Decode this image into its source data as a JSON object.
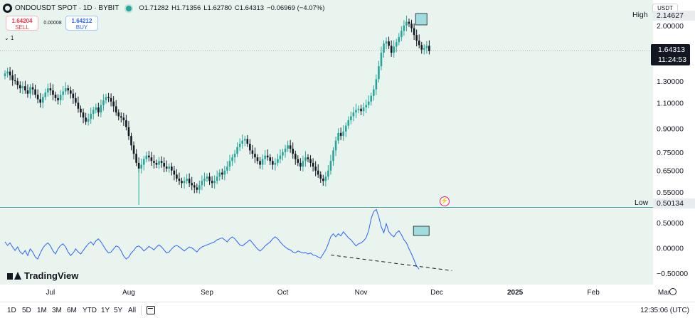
{
  "legend": {
    "symbol": "ONDOUSDT SPOT · 1D · BYBIT",
    "open": "O1.71282",
    "high": "H1.71356",
    "low": "L1.62780",
    "close": "C1.64313",
    "change": "−0.06969 (−4.07%)"
  },
  "trade": {
    "sell_price": "1.64204",
    "sell_label": "SELL",
    "buy_price": "1.64212",
    "buy_label": "BUY",
    "spread": "0.00008"
  },
  "indicator_toggle": "⌄ 1",
  "price_axis": {
    "currency": "USDT",
    "high_label": "High",
    "high_value": "2.14627",
    "low_label": "Low",
    "low_value": "0.50134",
    "last_price": "1.64313",
    "countdown": "11:24:53",
    "ticks": [
      {
        "label": "2.00000",
        "value": 2.0
      },
      {
        "label": "1.30000",
        "value": 1.3
      },
      {
        "label": "1.10000",
        "value": 1.1
      },
      {
        "label": "0.90000",
        "value": 0.9
      },
      {
        "label": "0.75000",
        "value": 0.75
      },
      {
        "label": "0.65000",
        "value": 0.65
      },
      {
        "label": "0.55000",
        "value": 0.55
      }
    ]
  },
  "osc_axis": {
    "ticks": [
      {
        "label": "0.50000",
        "value": 0.5
      },
      {
        "label": "0.00000",
        "value": 0.0
      },
      {
        "label": "−0.50000",
        "value": -0.5
      }
    ]
  },
  "x_axis": {
    "labels": [
      {
        "label": "Jul",
        "day": 18,
        "bold": false
      },
      {
        "label": "Aug",
        "day": 49,
        "bold": false
      },
      {
        "label": "Sep",
        "day": 80,
        "bold": false
      },
      {
        "label": "Oct",
        "day": 110,
        "bold": false
      },
      {
        "label": "Nov",
        "day": 141,
        "bold": false
      },
      {
        "label": "Dec",
        "day": 171,
        "bold": false
      },
      {
        "label": "2025",
        "day": 202,
        "bold": true
      },
      {
        "label": "Feb",
        "day": 233,
        "bold": false
      },
      {
        "label": "Mar",
        "day": 261,
        "bold": false
      }
    ]
  },
  "bottom_bar": {
    "ranges": [
      "1D",
      "5D",
      "1M",
      "3M",
      "6M",
      "YTD",
      "1Y",
      "5Y",
      "All"
    ],
    "clock": "12:35:06 (UTC)"
  },
  "branding": "TradingView",
  "colors": {
    "up": "#26a69a",
    "down": "#131722",
    "oscillator": "#2962ff",
    "pane_bg": "#eaf4ee",
    "highlight_box": "#7fd3d8"
  },
  "chart_data": [
    {
      "type": "candlestick",
      "title": "ONDOUSDT SPOT · 1D · BYBIT",
      "scale": "log",
      "ylim": [
        0.5,
        2.3
      ],
      "x_unit": "day index (Jul label at day 18)",
      "closes": [
        1.38,
        1.4,
        1.36,
        1.31,
        1.3,
        1.26,
        1.23,
        1.25,
        1.21,
        1.18,
        1.24,
        1.22,
        1.17,
        1.13,
        1.1,
        1.15,
        1.19,
        1.23,
        1.21,
        1.17,
        1.14,
        1.12,
        1.17,
        1.2,
        1.23,
        1.21,
        1.18,
        1.14,
        1.1,
        1.05,
        1.02,
        0.98,
        0.95,
        0.97,
        1.01,
        1.04,
        1.06,
        1.02,
        1.08,
        1.12,
        1.15,
        1.14,
        1.11,
        1.07,
        1.02,
        0.99,
        0.98,
        0.96,
        0.91,
        0.85,
        0.79,
        0.74,
        0.69,
        0.66,
        0.68,
        0.71,
        0.73,
        0.72,
        0.7,
        0.69,
        0.68,
        0.7,
        0.69,
        0.67,
        0.66,
        0.67,
        0.65,
        0.63,
        0.61,
        0.6,
        0.59,
        0.6,
        0.61,
        0.59,
        0.58,
        0.57,
        0.56,
        0.58,
        0.6,
        0.61,
        0.62,
        0.6,
        0.59,
        0.6,
        0.62,
        0.64,
        0.63,
        0.65,
        0.67,
        0.7,
        0.72,
        0.74,
        0.78,
        0.8,
        0.82,
        0.83,
        0.8,
        0.76,
        0.74,
        0.72,
        0.7,
        0.68,
        0.71,
        0.73,
        0.72,
        0.7,
        0.68,
        0.69,
        0.71,
        0.73,
        0.75,
        0.77,
        0.79,
        0.77,
        0.74,
        0.71,
        0.69,
        0.67,
        0.7,
        0.72,
        0.71,
        0.69,
        0.67,
        0.65,
        0.63,
        0.61,
        0.6,
        0.62,
        0.65,
        0.7,
        0.76,
        0.82,
        0.87,
        0.85,
        0.88,
        0.92,
        0.96,
        0.99,
        1.02,
        1.04,
        1.05,
        1.03,
        1.06,
        1.08,
        1.11,
        1.16,
        1.22,
        1.32,
        1.46,
        1.62,
        1.74,
        1.77,
        1.71,
        1.62,
        1.7,
        1.76,
        1.83,
        1.92,
        2.0,
        2.06,
        2.03,
        1.96,
        1.86,
        1.78,
        1.72,
        1.66,
        1.68,
        1.71,
        1.64
      ],
      "osc_values": [
        0.12,
        0.05,
        0.1,
        0.02,
        -0.05,
        0.02,
        -0.08,
        -0.12,
        -0.05,
        -0.15,
        -0.02,
        -0.08,
        -0.18,
        -0.22,
        -0.1,
        0.0,
        0.06,
        0.1,
        0.04,
        -0.06,
        -0.12,
        -0.02,
        0.05,
        0.08,
        0.02,
        -0.08,
        -0.15,
        -0.1,
        -0.02,
        -0.08,
        -0.12,
        -0.05,
        0.02,
        0.08,
        0.12,
        0.06,
        0.14,
        0.18,
        0.12,
        0.04,
        -0.04,
        -0.1,
        -0.08,
        -0.02,
        0.04,
        0.02,
        -0.06,
        -0.16,
        -0.22,
        -0.18,
        -0.1,
        -0.05,
        0.02,
        0.04,
        0.0,
        -0.06,
        -0.02,
        0.03,
        0.0,
        -0.04,
        0.02,
        0.06,
        0.02,
        -0.04,
        -0.1,
        -0.08,
        -0.02,
        0.03,
        0.05,
        0.02,
        -0.02,
        -0.06,
        -0.02,
        0.02,
        0.0,
        -0.04,
        -0.08,
        -0.02,
        0.02,
        0.04,
        0.06,
        0.08,
        0.1,
        0.12,
        0.16,
        0.18,
        0.2,
        0.16,
        0.12,
        0.18,
        0.22,
        0.18,
        0.12,
        0.06,
        0.04,
        0.08,
        0.12,
        0.16,
        0.1,
        0.04,
        -0.02,
        -0.06,
        -0.02,
        0.04,
        0.08,
        0.12,
        0.18,
        0.22,
        0.18,
        0.12,
        0.06,
        0.02,
        -0.02,
        -0.04,
        -0.08,
        -0.1,
        -0.06,
        -0.08,
        -0.1,
        -0.09,
        -0.12,
        -0.1,
        -0.14,
        -0.15,
        -0.18,
        -0.2,
        -0.12,
        -0.04,
        0.08,
        0.22,
        0.28,
        0.22,
        0.28,
        0.24,
        0.32,
        0.26,
        0.2,
        0.16,
        0.1,
        0.04,
        0.08,
        0.1,
        0.14,
        0.2,
        0.34,
        0.58,
        0.72,
        0.76,
        0.62,
        0.42,
        0.3,
        0.48,
        0.32,
        0.26,
        0.22,
        0.3,
        0.34,
        0.26,
        0.16,
        0.1,
        -0.02,
        -0.12,
        -0.24,
        -0.36,
        -0.42
      ]
    }
  ]
}
